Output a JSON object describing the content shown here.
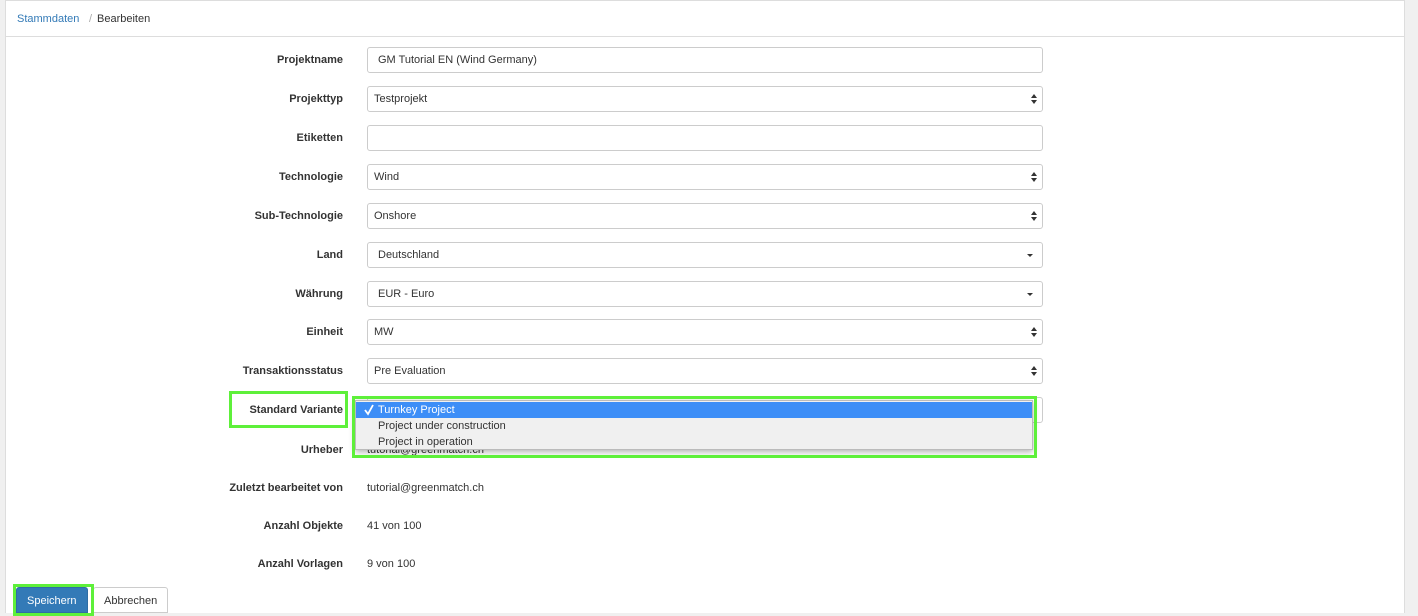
{
  "breadcrumb": {
    "items": [
      "Stammdaten",
      "Bearbeiten"
    ],
    "separator": "/"
  },
  "form": {
    "fields": [
      {
        "label": "Projektname",
        "value": "GM Tutorial EN (Wind Germany)"
      },
      {
        "label": "Projekttyp",
        "value": "Testprojekt"
      },
      {
        "label": "Etiketten"
      },
      {
        "label": "Technologie",
        "value": "Wind"
      },
      {
        "label": "Sub-Technologie",
        "value": "Onshore"
      },
      {
        "label": "Land",
        "value": "Deutschland"
      },
      {
        "label": "Währung",
        "value": "EUR - Euro"
      },
      {
        "label": "Einheit",
        "value": "MW"
      },
      {
        "label": "Transaktionsstatus",
        "value": "Pre Evaluation"
      },
      {
        "label": "Standard Variante"
      },
      {
        "label": "Urheber",
        "value": "tutorial@greenmatch.ch"
      },
      {
        "label": "Zuletzt bearbeitet von",
        "value": "tutorial@greenmatch.ch"
      },
      {
        "label": "Anzahl Objekte",
        "value": "41 von 100"
      },
      {
        "label": "Anzahl Vorlagen",
        "value": "9 von 100"
      }
    ]
  },
  "dropdown": {
    "options": [
      "Turnkey Project",
      "Project under construction",
      "Project in operation"
    ]
  },
  "buttons": [
    "Speichern",
    "Abbrechen"
  ]
}
